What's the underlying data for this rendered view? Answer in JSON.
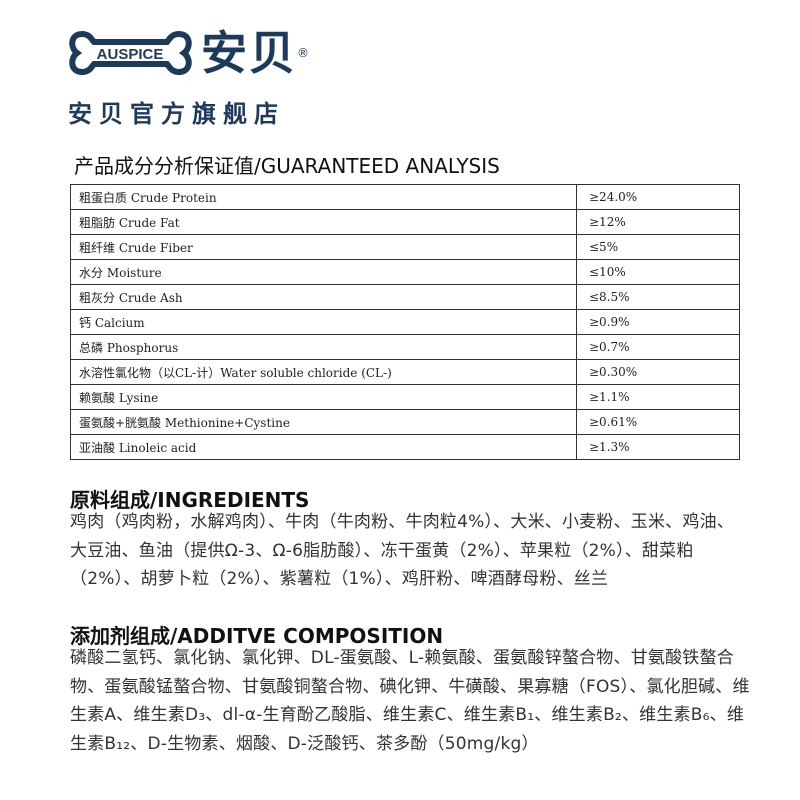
{
  "logo": {
    "text": "AUSPICE",
    "brand": "安贝",
    "registered": "®",
    "store": "安贝官方旗舰店",
    "color": "#1d3a5c"
  },
  "analysis": {
    "title": "产品成分分析保证值/GUARANTEED ANALYSIS",
    "rows": [
      {
        "name": "粗蛋白质 Crude Protein",
        "value": "≥24.0%"
      },
      {
        "name": "粗脂肪 Crude Fat",
        "value": "≥12%"
      },
      {
        "name": "粗纤维 Crude Fiber",
        "value": "≤5%"
      },
      {
        "name": "水分 Moisture",
        "value": "≤10%"
      },
      {
        "name": "粗灰分 Crude Ash",
        "value": "≤8.5%"
      },
      {
        "name": "钙 Calcium",
        "value": "≥0.9%"
      },
      {
        "name": "总磷 Phosphorus",
        "value": "≥0.7%"
      },
      {
        "name": "水溶性氯化物（以CL-计）Water soluble chloride (CL-)",
        "value": "≥0.30%"
      },
      {
        "name": "赖氨酸 Lysine",
        "value": "≥1.1%"
      },
      {
        "name": "蛋氨酸+胱氨酸 Methionine+Cystine",
        "value": "≥0.61%"
      },
      {
        "name": "亚油酸 Linoleic acid",
        "value": "≥1.3%"
      }
    ]
  },
  "ingredients": {
    "title": "原料组成/INGREDIENTS",
    "text": "鸡肉（鸡肉粉，水解鸡肉）、牛肉（牛肉粉、牛肉粒4%）、大米、小麦粉、玉米、鸡油、大豆油、鱼油（提供Ω-3、Ω-6脂肪酸）、冻干蛋黄（2%）、苹果粒（2%）、甜菜粕（2%）、胡萝卜粒（2%）、紫薯粒（1%）、鸡肝粉、啤酒酵母粉、丝兰"
  },
  "additives": {
    "title": "添加剂组成/ADDITVE COMPOSITION",
    "text": "磷酸二氢钙、氯化钠、氯化钾、DL-蛋氨酸、L-赖氨酸、蛋氨酸锌螯合物、甘氨酸铁螯合物、蛋氨酸锰螯合物、甘氨酸铜螯合物、碘化钾、牛磺酸、果寡糖（FOS）、氯化胆碱、维生素A、维生素D₃、dl-α-生育酚乙酸脂、维生素C、维生素B₁、维生素B₂、维生素B₆、维生素B₁₂、D-生物素、烟酸、D-泛酸钙、茶多酚（50mg/kg）"
  }
}
